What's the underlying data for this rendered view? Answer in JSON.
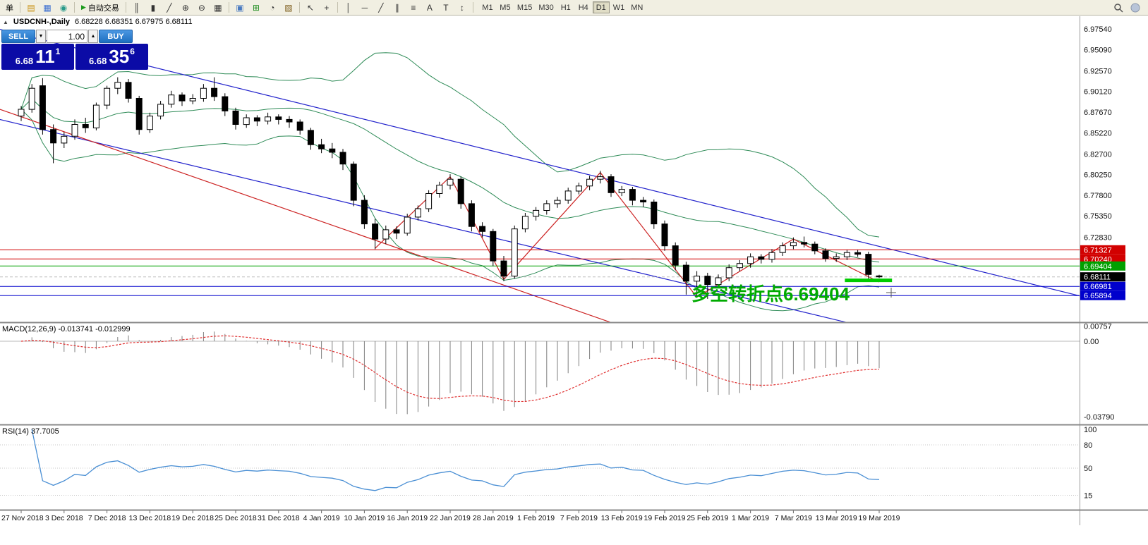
{
  "window": {
    "collapse_glyph": "▲",
    "symbol_title": "USDCNH-,Daily",
    "ohlc": "6.68228 6.68351 6.67975 6.68111"
  },
  "toolbar": {
    "items": [
      {
        "name": "new-order-button",
        "type": "button",
        "label": "单"
      },
      {
        "name": "separator",
        "type": "sep"
      },
      {
        "name": "new-chart-icon",
        "type": "icon",
        "glyph": "▤",
        "color": "#c89010"
      },
      {
        "name": "profiles-icon",
        "type": "icon",
        "glyph": "▦",
        "color": "#3c6fd0"
      },
      {
        "name": "refresh-icon",
        "type": "icon",
        "glyph": "◉",
        "color": "#2a9a8a"
      },
      {
        "name": "separator",
        "type": "sep"
      },
      {
        "name": "autotrading-button",
        "type": "button",
        "label": "自动交易",
        "glyph": "▶",
        "glyph_color": "#1a9a1a"
      },
      {
        "name": "separator",
        "type": "sep"
      },
      {
        "name": "ohlc-bars-icon",
        "type": "icon",
        "glyph": "║",
        "color": "#333333"
      },
      {
        "name": "candlestick-icon",
        "type": "icon",
        "glyph": "▮",
        "color": "#333333"
      },
      {
        "name": "line-chart-icon",
        "type": "icon",
        "glyph": "╱",
        "color": "#333333"
      },
      {
        "name": "zoom-in-icon",
        "type": "icon",
        "glyph": "⊕",
        "color": "#333333"
      },
      {
        "name": "zoom-out-icon",
        "type": "icon",
        "glyph": "⊖",
        "color": "#333333"
      },
      {
        "name": "tile-windows-icon",
        "type": "icon",
        "glyph": "▦",
        "color": "#333333"
      },
      {
        "name": "separator",
        "type": "sep"
      },
      {
        "name": "arrange-windows-icon",
        "type": "icon",
        "glyph": "▣",
        "color": "#4a7ac0"
      },
      {
        "name": "indicators-icon",
        "type": "icon",
        "glyph": "⊞",
        "color": "#1a8a1a"
      },
      {
        "name": "periods-icon",
        "type": "icon",
        "glyph": "◔",
        "color": "#333333"
      },
      {
        "name": "templates-icon",
        "type": "icon",
        "glyph": "▧",
        "color": "#806020"
      },
      {
        "name": "separator",
        "type": "sep"
      },
      {
        "name": "cursor-icon",
        "type": "icon",
        "glyph": "↖",
        "color": "#333333"
      },
      {
        "name": "crosshair-icon",
        "type": "icon",
        "glyph": "+",
        "color": "#333333"
      },
      {
        "name": "separator",
        "type": "sep"
      },
      {
        "name": "vertical-line-icon",
        "type": "icon",
        "glyph": "│",
        "color": "#333333"
      },
      {
        "name": "horizontal-line-icon",
        "type": "icon",
        "glyph": "─",
        "color": "#333333"
      },
      {
        "name": "trendline-icon",
        "type": "icon",
        "glyph": "╱",
        "color": "#333333"
      },
      {
        "name": "channel-icon",
        "type": "icon",
        "glyph": "∥",
        "color": "#333333"
      },
      {
        "name": "fibonacci-icon",
        "type": "icon",
        "glyph": "≡",
        "color": "#333333"
      },
      {
        "name": "text-icon",
        "type": "icon",
        "glyph": "A",
        "color": "#333333"
      },
      {
        "name": "text-label-icon",
        "type": "icon",
        "glyph": "T",
        "color": "#333333"
      },
      {
        "name": "arrows-icon",
        "type": "icon",
        "glyph": "↕",
        "color": "#333333"
      },
      {
        "name": "separator",
        "type": "sep"
      }
    ],
    "timeframes": [
      "M1",
      "M5",
      "M15",
      "M30",
      "H1",
      "H4",
      "D1",
      "W1",
      "MN"
    ],
    "active_timeframe": "D1"
  },
  "trade_panel": {
    "sell_label": "SELL",
    "buy_label": "BUY",
    "volume": "1.00",
    "volume_down_glyph": "▼",
    "volume_up_glyph": "▲",
    "bid": {
      "prefix": "6.68",
      "big": "11",
      "sup": "1"
    },
    "ask": {
      "prefix": "6.68",
      "big": "35",
      "sup": "6"
    }
  },
  "annotation": {
    "text": "多空转折点6.69404",
    "color": "#00aa00"
  },
  "indicators": {
    "macd_label": "MACD(12,26,9) -0.013741 -0.012999",
    "rsi_label": "RSI(14) 37.7005"
  },
  "axes": {
    "price_ticks": [
      "6.97540",
      "6.95090",
      "6.92570",
      "6.90120",
      "6.87670",
      "6.85220",
      "6.82700",
      "6.80250",
      "6.77800",
      "6.75350",
      "6.72830"
    ],
    "macd_ticks": [
      {
        "label": "0.00757",
        "value": 0.00757
      },
      {
        "label": "0.00",
        "value": 0
      },
      {
        "label": "-0.03790",
        "value": -0.0379
      }
    ],
    "rsi_ticks": [
      {
        "label": "100",
        "value": 100
      },
      {
        "label": "80",
        "value": 80
      },
      {
        "label": "50",
        "value": 50
      },
      {
        "label": "15",
        "value": 15
      }
    ],
    "dates": [
      "27 Nov 2018",
      "3 Dec 2018",
      "7 Dec 2018",
      "13 Dec 2018",
      "19 Dec 2018",
      "25 Dec 2018",
      "31 Dec 2018",
      "4 Jan 2019",
      "10 Jan 2019",
      "16 Jan 2019",
      "22 Jan 2019",
      "28 Jan 2019",
      "1 Feb 2019",
      "7 Feb 2019",
      "13 Feb 2019",
      "19 Feb 2019",
      "25 Feb 2019",
      "1 Mar 2019",
      "7 Mar 2019",
      "13 Mar 2019",
      "19 Mar 2019"
    ]
  },
  "chart_data": {
    "type": "candlestick",
    "symbol": "USDCNH-",
    "timeframe": "Daily",
    "ylim": [
      6.6273,
      6.9905
    ],
    "candles": [
      [
        6.872,
        6.884,
        6.866,
        6.88
      ],
      [
        6.88,
        6.91,
        6.876,
        6.905
      ],
      [
        6.908,
        6.917,
        6.85,
        6.856
      ],
      [
        6.856,
        6.862,
        6.816,
        6.84
      ],
      [
        6.84,
        6.853,
        6.834,
        6.848
      ],
      [
        6.848,
        6.868,
        6.844,
        6.862
      ],
      [
        6.862,
        6.87,
        6.852,
        6.858
      ],
      [
        6.858,
        6.888,
        6.855,
        6.885
      ],
      [
        6.885,
        6.908,
        6.88,
        6.905
      ],
      [
        6.905,
        6.918,
        6.898,
        6.912
      ],
      [
        6.912,
        6.916,
        6.888,
        6.893
      ],
      [
        6.893,
        6.896,
        6.85,
        6.856
      ],
      [
        6.856,
        6.876,
        6.852,
        6.872
      ],
      [
        6.872,
        6.89,
        6.868,
        6.886
      ],
      [
        6.886,
        6.902,
        6.882,
        6.897
      ],
      [
        6.897,
        6.9,
        6.884,
        6.89
      ],
      [
        6.89,
        6.898,
        6.886,
        6.893
      ],
      [
        6.893,
        6.91,
        6.889,
        6.905
      ],
      [
        6.905,
        6.918,
        6.89,
        6.895
      ],
      [
        6.895,
        6.899,
        6.872,
        6.878
      ],
      [
        6.878,
        6.882,
        6.856,
        6.862
      ],
      [
        6.862,
        6.874,
        6.858,
        6.87
      ],
      [
        6.87,
        6.873,
        6.86,
        6.866
      ],
      [
        6.866,
        6.876,
        6.862,
        6.871
      ],
      [
        6.871,
        6.874,
        6.862,
        6.868
      ],
      [
        6.868,
        6.872,
        6.858,
        6.865
      ],
      [
        6.865,
        6.868,
        6.85,
        6.855
      ],
      [
        6.855,
        6.858,
        6.832,
        6.838
      ],
      [
        6.838,
        6.845,
        6.828,
        6.833
      ],
      [
        6.833,
        6.84,
        6.822,
        6.829
      ],
      [
        6.829,
        6.833,
        6.808,
        6.815
      ],
      [
        6.815,
        6.818,
        6.765,
        6.772
      ],
      [
        6.772,
        6.778,
        6.738,
        6.744
      ],
      [
        6.744,
        6.75,
        6.714,
        6.726
      ],
      [
        6.726,
        6.742,
        6.72,
        6.737
      ],
      [
        6.737,
        6.741,
        6.726,
        6.733
      ],
      [
        6.733,
        6.756,
        6.73,
        6.752
      ],
      [
        6.752,
        6.766,
        6.748,
        6.762
      ],
      [
        6.762,
        6.784,
        6.758,
        6.78
      ],
      [
        6.78,
        6.794,
        6.775,
        6.79
      ],
      [
        6.79,
        6.803,
        6.785,
        6.797
      ],
      [
        6.797,
        6.8,
        6.762,
        6.768
      ],
      [
        6.768,
        6.772,
        6.735,
        6.741
      ],
      [
        6.741,
        6.746,
        6.728,
        6.735
      ],
      [
        6.735,
        6.738,
        6.694,
        6.7
      ],
      [
        6.7,
        6.706,
        6.676,
        6.682
      ],
      [
        6.682,
        6.742,
        6.679,
        6.738
      ],
      [
        6.738,
        6.757,
        6.734,
        6.753
      ],
      [
        6.753,
        6.764,
        6.748,
        6.76
      ],
      [
        6.76,
        6.772,
        6.755,
        6.768
      ],
      [
        6.768,
        6.776,
        6.763,
        6.772
      ],
      [
        6.772,
        6.787,
        6.768,
        6.783
      ],
      [
        6.783,
        6.793,
        6.779,
        6.789
      ],
      [
        6.789,
        6.801,
        6.784,
        6.797
      ],
      [
        6.797,
        6.807,
        6.792,
        6.8
      ],
      [
        6.8,
        6.803,
        6.776,
        6.781
      ],
      [
        6.781,
        6.789,
        6.777,
        6.785
      ],
      [
        6.785,
        6.788,
        6.766,
        6.772
      ],
      [
        6.772,
        6.776,
        6.764,
        6.77
      ],
      [
        6.77,
        6.773,
        6.738,
        6.744
      ],
      [
        6.744,
        6.748,
        6.712,
        6.718
      ],
      [
        6.718,
        6.722,
        6.689,
        6.695
      ],
      [
        6.695,
        6.699,
        6.66,
        6.676
      ],
      [
        6.676,
        6.688,
        6.657,
        6.682
      ],
      [
        6.682,
        6.686,
        6.655,
        6.672
      ],
      [
        6.672,
        6.684,
        6.668,
        6.68
      ],
      [
        6.68,
        6.696,
        6.676,
        6.692
      ],
      [
        6.692,
        6.701,
        6.688,
        6.697
      ],
      [
        6.697,
        6.709,
        6.692,
        6.705
      ],
      [
        6.705,
        6.708,
        6.697,
        6.702
      ],
      [
        6.702,
        6.714,
        6.698,
        6.71
      ],
      [
        6.71,
        6.722,
        6.706,
        6.718
      ],
      [
        6.718,
        6.728,
        6.714,
        6.722
      ],
      [
        6.722,
        6.729,
        6.716,
        6.72
      ],
      [
        6.72,
        6.723,
        6.708,
        6.712
      ],
      [
        6.712,
        6.715,
        6.699,
        6.703
      ],
      [
        6.703,
        6.709,
        6.699,
        6.705
      ],
      [
        6.705,
        6.713,
        6.701,
        6.71
      ],
      [
        6.71,
        6.713,
        6.705,
        6.708
      ],
      [
        6.708,
        6.711,
        6.678,
        6.684
      ],
      [
        6.68228,
        6.68351,
        6.67975,
        6.68111
      ]
    ],
    "overlays": {
      "bollinger": {
        "period": 20,
        "deviation": 2,
        "color": "#2e8b57"
      },
      "trendlines": [
        {
          "name": "blue-channel-upper",
          "color": "#2222cc",
          "points": [
            [
              -2,
              6.975
            ],
            [
              99.5,
              6.656
            ]
          ]
        },
        {
          "name": "blue-channel-lower",
          "color": "#2222cc",
          "points": [
            [
              -2,
              6.868
            ],
            [
              77,
              6.627
            ]
          ]
        },
        {
          "name": "red-resistance",
          "color": "#cc2222",
          "points": [
            [
              -2,
              6.88
            ],
            [
              55,
              6.627
            ]
          ]
        }
      ],
      "zigzag": {
        "color": "#cc2222",
        "points": [
          [
            33,
            6.715
          ],
          [
            40,
            6.8
          ],
          [
            45,
            6.678
          ],
          [
            54,
            6.805
          ],
          [
            63,
            6.657
          ],
          [
            72,
            6.726
          ],
          [
            80,
            6.675
          ]
        ]
      },
      "hlines": [
        {
          "price": 6.71327,
          "label": "6.71327",
          "color": "#d20000"
        },
        {
          "price": 6.7024,
          "label": "6.70240",
          "color": "#d20000"
        },
        {
          "price": 6.69404,
          "label": "6.69404",
          "color": "#00a000"
        },
        {
          "price": 6.66981,
          "label": "6.66981",
          "color": "#0000cc"
        },
        {
          "price": 6.65894,
          "label": "6.65894",
          "color": "#0000cc"
        }
      ],
      "thick_segment": {
        "price": 6.677,
        "from": 76.8,
        "to": 81.2,
        "color": "#00cc00",
        "width": 5
      }
    },
    "current_price": {
      "price": 6.68111,
      "label": "6.68111",
      "color": "#000000"
    },
    "macd": {
      "fast": 12,
      "slow": 26,
      "signal": 9,
      "last": -0.013741,
      "last_signal": -0.012999
    },
    "rsi": {
      "period": 14,
      "last": 37.7005
    }
  }
}
